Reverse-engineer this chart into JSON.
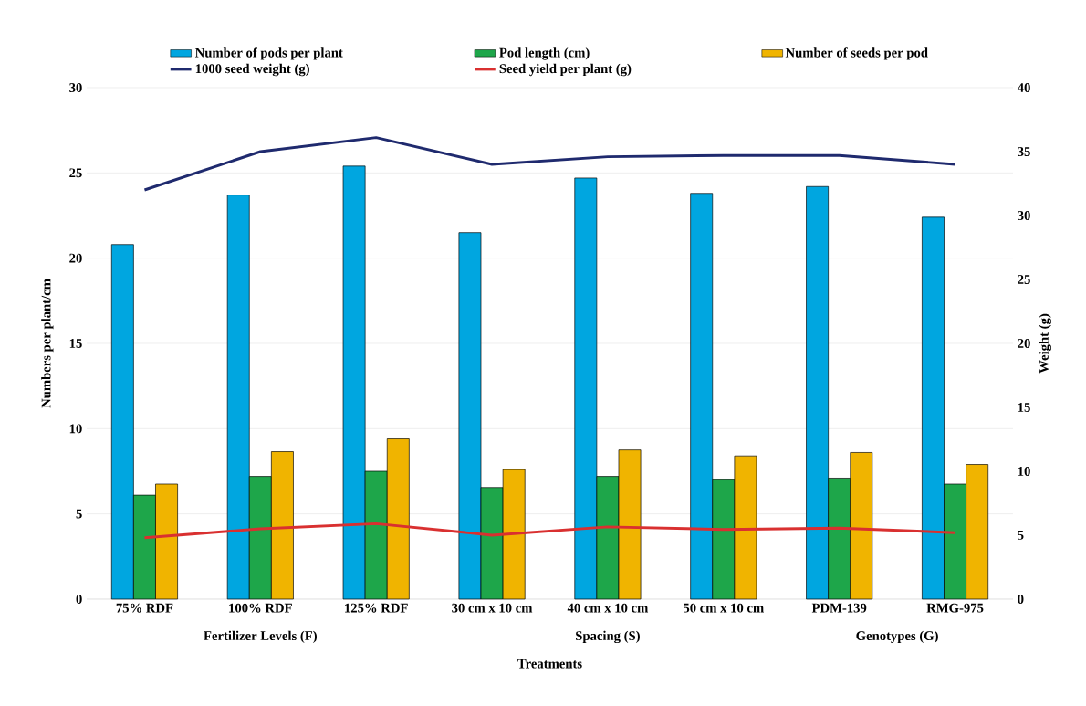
{
  "chart_data": {
    "type": "bar",
    "xlabel": "Treatments",
    "ylabel": "Numbers per plant/cm",
    "y2label": "Weight (g)",
    "categories": [
      "75% RDF",
      "100% RDF",
      "125% RDF",
      "30 cm x 10 cm",
      "40 cm x 10 cm",
      "50 cm x 10 cm",
      "PDM-139",
      "RMG-975"
    ],
    "series": [
      {
        "name": "Number of pods per plant",
        "type": "bar",
        "color": "#00a6e0",
        "values": [
          20.8,
          23.7,
          25.4,
          21.5,
          24.7,
          23.8,
          24.2,
          22.4
        ]
      },
      {
        "name": "Pod length (cm)",
        "type": "bar",
        "color": "#1ea64a",
        "values": [
          6.1,
          7.2,
          7.5,
          6.55,
          7.2,
          7.0,
          7.1,
          6.75
        ]
      },
      {
        "name": "Number of seeds per pod",
        "type": "bar",
        "color": "#f0b400",
        "values": [
          6.75,
          8.65,
          9.4,
          7.6,
          8.75,
          8.4,
          8.6,
          7.9
        ]
      },
      {
        "name": "1000 seed weight (g)",
        "type": "line",
        "axis": "y2",
        "color": "#1f2a6e",
        "values": [
          32.0,
          35.0,
          36.1,
          34.0,
          34.6,
          34.7,
          34.7,
          34.0
        ]
      },
      {
        "name": "Seed yield per plant (g)",
        "type": "line",
        "axis": "y2",
        "color": "#d93030",
        "values": [
          4.8,
          5.5,
          5.9,
          5.0,
          5.65,
          5.45,
          5.55,
          5.2
        ]
      }
    ],
    "ylim": [
      0,
      30
    ],
    "yticks": [
      0,
      5,
      10,
      15,
      20,
      25,
      30
    ],
    "y2lim": [
      0,
      40
    ],
    "y2ticks": [
      0,
      5,
      10,
      15,
      20,
      25,
      30,
      35,
      40
    ],
    "grid": "y",
    "legend": "top",
    "annotations": [
      "Fertilizer Levels (F)",
      "Spacing (S)",
      "Genotypes (G)"
    ]
  }
}
